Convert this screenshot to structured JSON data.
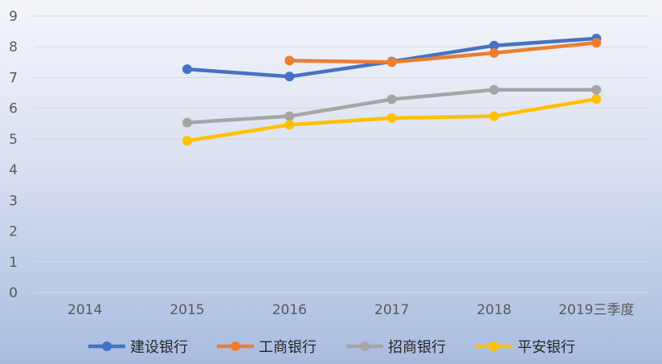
{
  "chart_data": {
    "type": "line",
    "title": "",
    "xlabel": "",
    "ylabel": "",
    "categories": [
      "2014",
      "2015",
      "2016",
      "2017",
      "2018",
      "2019三季度"
    ],
    "ylim": [
      0,
      9
    ],
    "yticks": [
      0,
      1,
      2,
      3,
      4,
      5,
      6,
      7,
      8,
      9
    ],
    "grid": true,
    "legend_position": "bottom",
    "series": [
      {
        "name": "建设银行",
        "color": "#4472c4",
        "values": [
          null,
          7.27,
          7.03,
          7.52,
          8.04,
          8.27
        ]
      },
      {
        "name": "工商银行",
        "color": "#ed7d31",
        "values": [
          null,
          null,
          7.55,
          7.5,
          7.8,
          8.13
        ]
      },
      {
        "name": "招商银行",
        "color": "#a5a5a5",
        "values": [
          null,
          5.53,
          5.74,
          6.29,
          6.6,
          6.6
        ]
      },
      {
        "name": "平安银行",
        "color": "#ffc000",
        "values": [
          null,
          4.94,
          5.46,
          5.68,
          5.74,
          6.3
        ]
      }
    ]
  }
}
